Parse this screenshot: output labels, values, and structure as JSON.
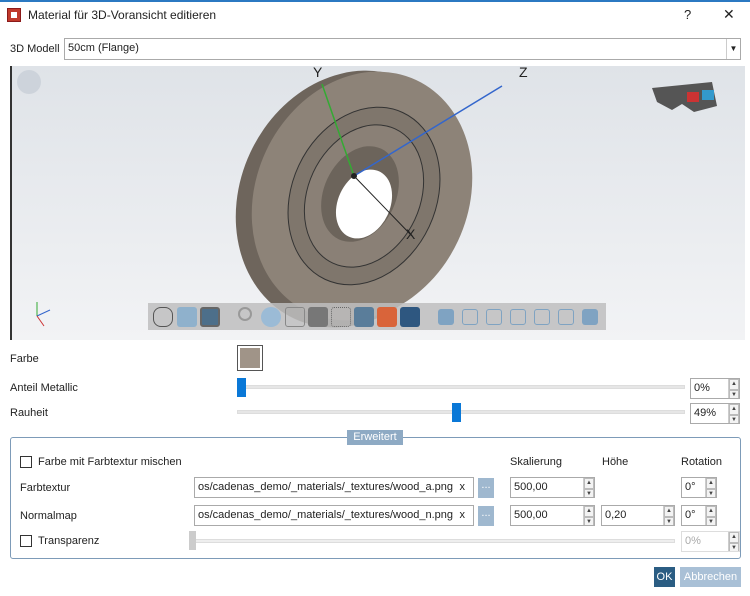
{
  "window": {
    "title": "Material für 3D-Voransicht editieren",
    "help": "?",
    "close": "✕"
  },
  "model": {
    "label": "3D Modell",
    "value": "50cm (Flange)"
  },
  "viewport": {
    "axes": {
      "y": "Y",
      "z": "Z",
      "x": "X"
    }
  },
  "material": {
    "farbe_label": "Farbe",
    "farbe_color": "#a09488",
    "metallic_label": "Anteil Metallic",
    "metallic_value": "0%",
    "metallic_fraction": 0,
    "rauheit_label": "Rauheit",
    "rauheit_value": "49%",
    "rauheit_fraction": 0.49
  },
  "advanced": {
    "title": "Erweitert",
    "mix_label": "Farbe mit Farbtextur mischen",
    "col_scale": "Skalierung",
    "col_height": "Höhe",
    "col_rotation": "Rotation",
    "farbtextur": {
      "label": "Farbtextur",
      "path": "os/cadenas_demo/_materials/_textures/wood_a.png",
      "clear": "x",
      "browse": "...",
      "scale": "500,00",
      "rotation": "0°"
    },
    "normalmap": {
      "label": "Normalmap",
      "path": "os/cadenas_demo/_materials/_textures/wood_n.png",
      "clear": "x",
      "browse": "...",
      "scale": "500,00",
      "height": "0,20",
      "rotation": "0°"
    },
    "transparency_label": "Transparenz",
    "transparency_value": "0%"
  },
  "buttons": {
    "ok": "OK",
    "cancel": "Abbrechen"
  }
}
